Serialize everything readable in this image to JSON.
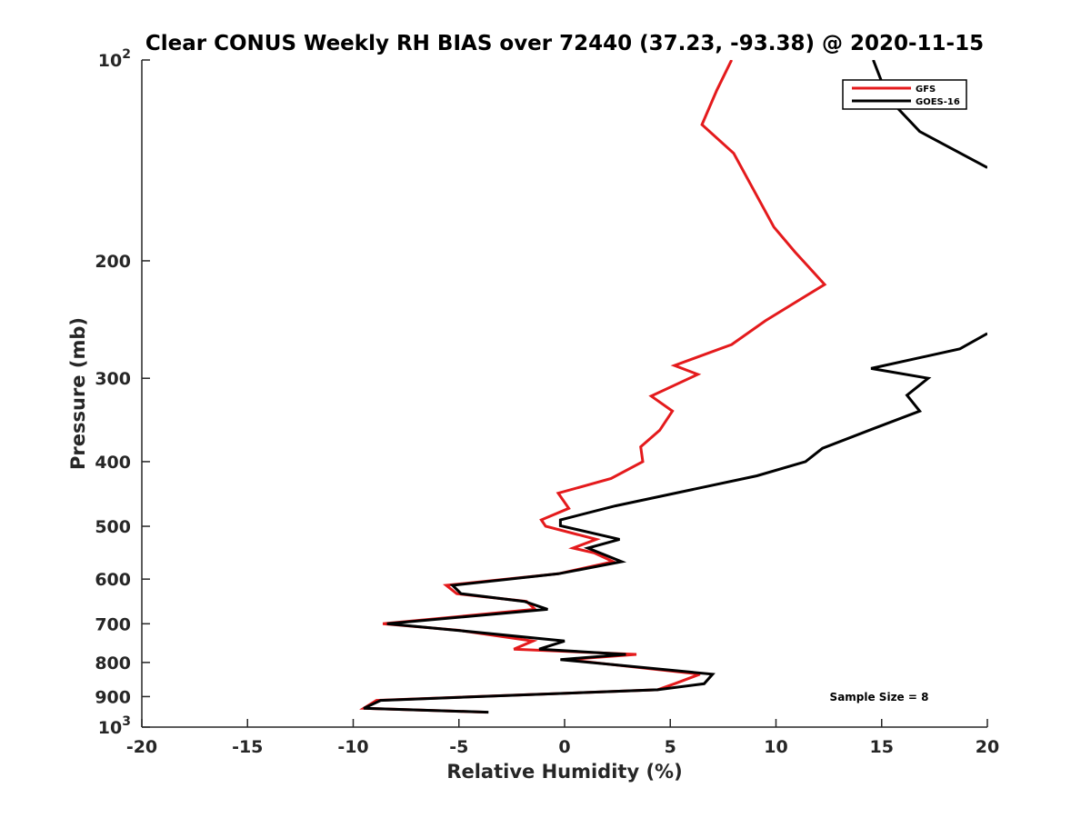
{
  "chart_data": {
    "type": "line",
    "title": "Clear CONUS Weekly RH BIAS over 72440 (37.23, -93.38) @ 2020-11-15",
    "xlabel": "Relative Humidity (%)",
    "ylabel": "Pressure (mb)",
    "xlim": [
      -20,
      20
    ],
    "ylim": [
      100,
      1000
    ],
    "yscale": "log",
    "y_reversed": true,
    "grid": false,
    "legend_position": "top-right",
    "annotation": "Sample Size = 8",
    "x_ticks": [
      "-20",
      "-15",
      "-10",
      "-5",
      "0",
      "5",
      "10",
      "15",
      "20"
    ],
    "y_ticks": [
      {
        "value": 100,
        "base": "10",
        "exp": "2"
      },
      {
        "value": 200,
        "label": "200"
      },
      {
        "value": 300,
        "label": "300"
      },
      {
        "value": 400,
        "label": "400"
      },
      {
        "value": 500,
        "label": "500"
      },
      {
        "value": 600,
        "label": "600"
      },
      {
        "value": 700,
        "label": "700"
      },
      {
        "value": 800,
        "label": "800"
      },
      {
        "value": 900,
        "label": "900"
      },
      {
        "value": 1000,
        "base": "10",
        "exp": "3"
      }
    ],
    "series": [
      {
        "name": "GFS",
        "color": "#e41a1c",
        "x": [
          7.9,
          7.2,
          6.5,
          8.0,
          9.9,
          10.9,
          12.3,
          9.5,
          7.9,
          5.2,
          6.3,
          4.1,
          5.1,
          4.5,
          3.6,
          3.7,
          2.2,
          -0.3,
          0.2,
          -1.1,
          -0.9,
          1.5,
          0.4,
          1.4,
          2.3,
          -0.3,
          -5.6,
          -5.1,
          -1.8,
          -1.4,
          -8.6,
          -5.0,
          -1.5,
          -2.4,
          3.4,
          0.1,
          6.4,
          5.2,
          4.4,
          -8.9,
          -9.5,
          -3.7
        ],
        "y": [
          100,
          111,
          125,
          138,
          178,
          194,
          217,
          246,
          267,
          287,
          296,
          319,
          336,
          359,
          380,
          400,
          424,
          446,
          470,
          489,
          500,
          523,
          539,
          548,
          565,
          589,
          613,
          631,
          648,
          666,
          700,
          716,
          743,
          764,
          778,
          792,
          833,
          861,
          879,
          912,
          937,
          950
        ]
      },
      {
        "name": "GOES-16",
        "color": "#000000",
        "x": [
          14.6,
          15.3,
          16.8,
          20.0,
          null,
          20.0,
          18.7,
          14.5,
          17.2,
          16.2,
          16.8,
          14.6,
          12.2,
          11.4,
          9.1,
          2.4,
          -0.2,
          -0.2,
          2.6,
          1.1,
          2.7,
          -0.3,
          -5.3,
          -4.9,
          -1.9,
          -0.8,
          -8.4,
          -5.1,
          0.0,
          -1.2,
          2.9,
          -0.2,
          7.0,
          6.6,
          4.4,
          -8.7,
          -9.5,
          -3.6
        ],
        "y": [
          100,
          114,
          128,
          145,
          null,
          257,
          271,
          290,
          300,
          318,
          336,
          357,
          382,
          400,
          420,
          466,
          489,
          499,
          523,
          539,
          565,
          589,
          613,
          631,
          648,
          666,
          700,
          716,
          743,
          764,
          778,
          792,
          833,
          861,
          879,
          912,
          937,
          950
        ]
      }
    ]
  }
}
